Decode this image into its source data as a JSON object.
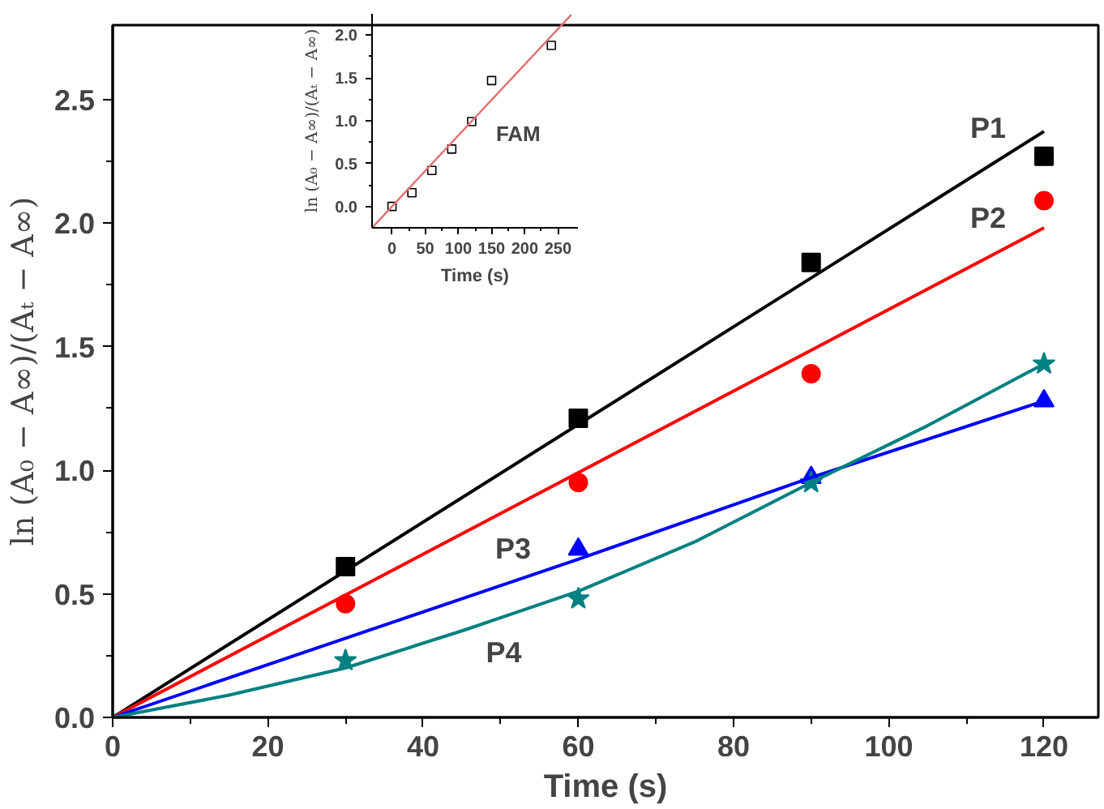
{
  "chart_data": [
    {
      "type": "scatter",
      "xlabel": "Time (s)",
      "ylabel": "ln (A₀ − A∞)/(Aₜ − A∞)",
      "xlim": [
        0,
        127
      ],
      "xticks": [
        0,
        20,
        40,
        60,
        80,
        100,
        120
      ],
      "ylim": [
        0,
        2.8
      ],
      "yticks": [
        {
          "value": 0,
          "label": "0.0"
        },
        {
          "value": 0.5,
          "label": "0.5"
        },
        {
          "value": 1,
          "label": "1.0"
        },
        {
          "value": 1.5,
          "label": "1.5"
        },
        {
          "value": 2,
          "label": "2.0"
        },
        {
          "value": 2.5,
          "label": "2.5"
        }
      ],
      "series": [
        {
          "marker": "square",
          "color": "#000000",
          "x": [
            30,
            60,
            90,
            120
          ],
          "values": [
            0.61,
            1.21,
            1.84,
            2.27
          ]
        },
        {
          "marker": "circle",
          "color": "#ff0000",
          "x": [
            30,
            60,
            90,
            120
          ],
          "values": [
            0.46,
            0.95,
            1.39,
            2.09
          ]
        },
        {
          "marker": "triangle",
          "color": "#0000ff",
          "x": [
            60,
            90,
            120
          ],
          "values": [
            0.68,
            0.97,
            1.28
          ]
        },
        {
          "marker": "star",
          "color": "#008080",
          "x": [
            30,
            60,
            90,
            120
          ],
          "values": [
            0.23,
            0.48,
            0.95,
            1.43
          ]
        },
        {
          "name": "P1",
          "type": "line",
          "marker": "none",
          "color": "#000000",
          "x": [
            0,
            120
          ],
          "values": [
            0,
            2.37
          ]
        },
        {
          "name": "P2",
          "type": "line",
          "marker": "none",
          "color": "#ff0000",
          "x": [
            0,
            120
          ],
          "values": [
            0,
            1.98
          ]
        },
        {
          "name": "P3",
          "type": "line",
          "marker": "none",
          "color": "#0000ff",
          "x": [
            0,
            30,
            60,
            90,
            120
          ],
          "values": [
            0,
            0.32,
            0.64,
            0.97,
            1.28
          ]
        },
        {
          "name": "P4",
          "type": "line",
          "marker": "none",
          "color": "#008080",
          "x": [
            0,
            15,
            30,
            45,
            60,
            75,
            90,
            105,
            120
          ],
          "values": [
            0,
            0.09,
            0.2,
            0.35,
            0.51,
            0.71,
            0.95,
            1.18,
            1.43
          ]
        }
      ]
    },
    {
      "type": "scatter",
      "xlabel": "Time (s)",
      "ylabel": "ln (A₀ − A∞)/(Aₜ − A∞)",
      "xlim": [
        -30,
        280
      ],
      "xticks": [
        0,
        50,
        100,
        150,
        200,
        250
      ],
      "ylim": [
        -0.25,
        2.25
      ],
      "yticks": [
        {
          "value": 0,
          "label": "0.0"
        },
        {
          "value": 0.5,
          "label": "0.5"
        },
        {
          "value": 1,
          "label": "1.0"
        },
        {
          "value": 1.5,
          "label": "1.5"
        },
        {
          "value": 2,
          "label": "2.0"
        }
      ],
      "series": [
        {
          "marker": "square",
          "color": "#000000",
          "x": [
            0,
            30,
            60,
            90,
            120,
            150,
            240
          ],
          "values": [
            0,
            0.16,
            0.42,
            0.67,
            0.99,
            1.47,
            1.88
          ]
        },
        {
          "type": "line",
          "marker": "none",
          "color": "#e07070",
          "x": [
            -30,
            270
          ],
          "values": [
            -0.25,
            2.24
          ]
        }
      ],
      "annotations": [
        "FAM"
      ]
    }
  ]
}
